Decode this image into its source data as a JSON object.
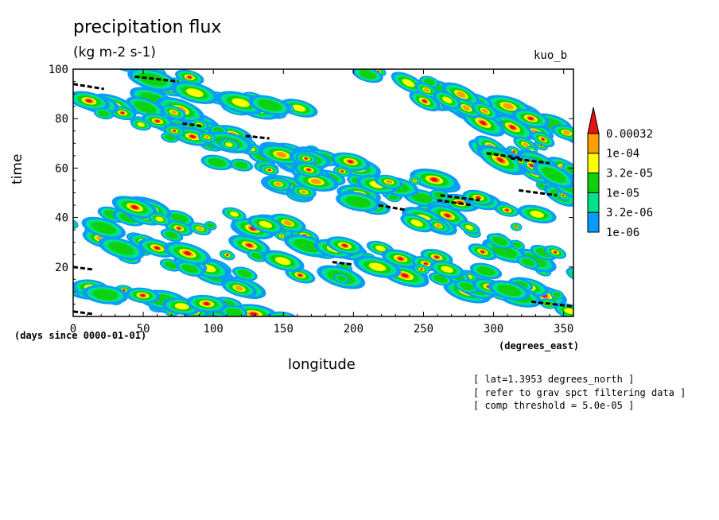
{
  "chart_data": {
    "type": "heatmap",
    "title": "precipitation flux",
    "units": "(kg m-2 s-1)",
    "run_label": "kuo_b",
    "xlabel": "longitude",
    "ylabel": "time",
    "x_units": "(degrees_east)",
    "time_units": "(days since 0000-01-01)",
    "xlim": [
      0,
      357
    ],
    "ylim": [
      0,
      100
    ],
    "x_ticks": [
      0,
      50,
      100,
      150,
      200,
      250,
      300,
      350
    ],
    "y_ticks": [
      20,
      40,
      60,
      80,
      100
    ],
    "colorbar": {
      "levels": [
        "1e-06",
        "3.2e-06",
        "1e-05",
        "3.2e-05",
        "1e-04",
        "0.00032"
      ],
      "colors": [
        "#0a9bff",
        "#00e38b",
        "#0fd10f",
        "#ffff00",
        "#ff9e00",
        "#e81010"
      ]
    },
    "bands": [
      {
        "x0": 0,
        "y0": 95,
        "x1": 120,
        "y1": 70
      },
      {
        "x0": 10,
        "y0": 85,
        "x1": 200,
        "y1": 60
      },
      {
        "x0": 60,
        "y0": 75,
        "x1": 300,
        "y1": 45
      },
      {
        "x0": 100,
        "y0": 60,
        "x1": 340,
        "y1": 35
      },
      {
        "x0": 150,
        "y0": 65,
        "x1": 357,
        "y1": 40
      },
      {
        "x0": 200,
        "y0": 100,
        "x1": 357,
        "y1": 75
      },
      {
        "x0": 240,
        "y0": 95,
        "x1": 357,
        "y1": 62
      },
      {
        "x0": 0,
        "y0": 35,
        "x1": 120,
        "y1": 15
      },
      {
        "x0": 20,
        "y0": 45,
        "x1": 200,
        "y1": 15
      },
      {
        "x0": 120,
        "y0": 40,
        "x1": 300,
        "y1": 10
      },
      {
        "x0": 180,
        "y0": 30,
        "x1": 357,
        "y1": 5
      },
      {
        "x0": 250,
        "y0": 40,
        "x1": 357,
        "y1": 18
      },
      {
        "x0": 0,
        "y0": 10,
        "x1": 150,
        "y1": 0
      },
      {
        "x0": 290,
        "y0": 70,
        "x1": 357,
        "y1": 50
      },
      {
        "x0": 40,
        "y0": 100,
        "x1": 160,
        "y1": 82
      }
    ],
    "threshold_contours": [
      {
        "x0": 0,
        "y0": 94,
        "x1": 22,
        "y1": 92
      },
      {
        "x0": 44,
        "y0": 97,
        "x1": 75,
        "y1": 95
      },
      {
        "x0": 78,
        "y0": 78,
        "x1": 92,
        "y1": 77
      },
      {
        "x0": 123,
        "y0": 73,
        "x1": 140,
        "y1": 72
      },
      {
        "x0": 218,
        "y0": 45,
        "x1": 238,
        "y1": 43
      },
      {
        "x0": 262,
        "y0": 49,
        "x1": 290,
        "y1": 47
      },
      {
        "x0": 260,
        "y0": 47,
        "x1": 285,
        "y1": 45
      },
      {
        "x0": 295,
        "y0": 66,
        "x1": 320,
        "y1": 64
      },
      {
        "x0": 312,
        "y0": 64,
        "x1": 340,
        "y1": 62
      },
      {
        "x0": 318,
        "y0": 51,
        "x1": 345,
        "y1": 49
      },
      {
        "x0": 327,
        "y0": 6,
        "x1": 357,
        "y1": 4
      },
      {
        "x0": 0,
        "y0": 20,
        "x1": 14,
        "y1": 19
      },
      {
        "x0": 0,
        "y0": 2,
        "x1": 14,
        "y1": 1
      },
      {
        "x0": 185,
        "y0": 22,
        "x1": 200,
        "y1": 21
      }
    ]
  },
  "notes": [
    "[ lat=1.3953 degrees_north ]",
    "[ refer to grav spct filtering data ]",
    "[ comp threshold = 5.0e-05 ]"
  ]
}
